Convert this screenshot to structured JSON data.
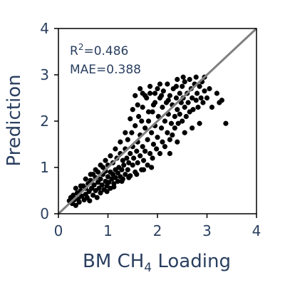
{
  "chart_data": {
    "type": "scatter",
    "title": "",
    "xlabel": {
      "main": "BM CH",
      "sub": "4",
      "tail": " Loading"
    },
    "ylabel": "Prediction",
    "xlim": [
      0,
      4
    ],
    "ylim": [
      0,
      4
    ],
    "xticks": [
      "0",
      "1",
      "2",
      "3",
      "4"
    ],
    "yticks": [
      "0",
      "1",
      "2",
      "3",
      "4"
    ],
    "grid": false,
    "reference_line": {
      "type": "y=x",
      "color": "#808080"
    },
    "annotations": {
      "r2": {
        "prefix": "R",
        "sup": "2",
        "value": "=0.486"
      },
      "mae": "MAE=0.388"
    },
    "point_color": "#000000",
    "points": [
      [
        0.22,
        0.28
      ],
      [
        0.25,
        0.35
      ],
      [
        0.28,
        0.22
      ],
      [
        0.3,
        0.4
      ],
      [
        0.32,
        0.3
      ],
      [
        0.35,
        0.18
      ],
      [
        0.38,
        0.45
      ],
      [
        0.4,
        0.32
      ],
      [
        0.42,
        0.25
      ],
      [
        0.45,
        0.5
      ],
      [
        0.47,
        0.38
      ],
      [
        0.5,
        0.6
      ],
      [
        0.52,
        0.3
      ],
      [
        0.55,
        0.42
      ],
      [
        0.55,
        0.55
      ],
      [
        0.58,
        0.35
      ],
      [
        0.6,
        0.65
      ],
      [
        0.62,
        0.48
      ],
      [
        0.63,
        0.28
      ],
      [
        0.65,
        0.72
      ],
      [
        0.67,
        0.55
      ],
      [
        0.7,
        0.4
      ],
      [
        0.7,
        0.85
      ],
      [
        0.72,
        0.62
      ],
      [
        0.75,
        0.5
      ],
      [
        0.75,
        0.78
      ],
      [
        0.78,
        0.35
      ],
      [
        0.8,
        0.68
      ],
      [
        0.8,
        0.9
      ],
      [
        0.82,
        0.55
      ],
      [
        0.85,
        0.75
      ],
      [
        0.85,
        0.45
      ],
      [
        0.88,
        0.62
      ],
      [
        0.9,
        0.85
      ],
      [
        0.9,
        1.0
      ],
      [
        0.92,
        0.52
      ],
      [
        0.95,
        0.7
      ],
      [
        0.95,
        0.92
      ],
      [
        0.98,
        0.6
      ],
      [
        1.0,
        0.8
      ],
      [
        1.0,
        1.05
      ],
      [
        1.02,
        0.68
      ],
      [
        1.05,
        0.9
      ],
      [
        1.05,
        0.55
      ],
      [
        1.08,
        0.75
      ],
      [
        1.1,
        1.1
      ],
      [
        1.1,
        0.85
      ],
      [
        1.12,
        0.65
      ],
      [
        1.15,
        0.95
      ],
      [
        1.15,
        0.78
      ],
      [
        1.18,
        1.2
      ],
      [
        1.2,
        0.88
      ],
      [
        1.2,
        0.7
      ],
      [
        1.22,
        1.0
      ],
      [
        1.25,
        0.8
      ],
      [
        1.25,
        1.3
      ],
      [
        1.28,
        0.95
      ],
      [
        1.3,
        1.15
      ],
      [
        1.3,
        0.75
      ],
      [
        1.32,
        1.05
      ],
      [
        1.35,
        0.85
      ],
      [
        1.35,
        1.4
      ],
      [
        1.38,
        1.2
      ],
      [
        1.4,
        0.95
      ],
      [
        1.4,
        1.6
      ],
      [
        1.42,
        1.1
      ],
      [
        1.45,
        1.3
      ],
      [
        1.45,
        0.82
      ],
      [
        1.48,
        1.75
      ],
      [
        1.5,
        1.05
      ],
      [
        1.5,
        1.45
      ],
      [
        1.52,
        1.2
      ],
      [
        1.55,
        1.9
      ],
      [
        1.55,
        0.9
      ],
      [
        1.58,
        1.35
      ],
      [
        1.6,
        1.55
      ],
      [
        1.6,
        1.1
      ],
      [
        1.62,
        2.1
      ],
      [
        1.65,
        1.25
      ],
      [
        1.65,
        1.7
      ],
      [
        1.68,
        0.95
      ],
      [
        1.7,
        1.45
      ],
      [
        1.7,
        2.3
      ],
      [
        1.72,
        1.15
      ],
      [
        1.75,
        1.85
      ],
      [
        1.75,
        1.35
      ],
      [
        1.78,
        2.5
      ],
      [
        1.8,
        1.6
      ],
      [
        1.8,
        1.05
      ],
      [
        1.82,
        2.0
      ],
      [
        1.85,
        1.3
      ],
      [
        1.85,
        2.6
      ],
      [
        1.88,
        1.75
      ],
      [
        1.9,
        2.2
      ],
      [
        1.9,
        1.2
      ],
      [
        1.92,
        1.5
      ],
      [
        1.95,
        2.4
      ],
      [
        1.95,
        1.9
      ],
      [
        1.98,
        1.4
      ],
      [
        2.0,
        2.7
      ],
      [
        2.0,
        1.65
      ],
      [
        2.02,
        2.1
      ],
      [
        2.05,
        1.3
      ],
      [
        2.05,
        2.5
      ],
      [
        2.08,
        1.85
      ],
      [
        2.1,
        2.3
      ],
      [
        2.1,
        1.55
      ],
      [
        2.12,
        2.65
      ],
      [
        2.15,
        2.0
      ],
      [
        2.15,
        1.45
      ],
      [
        2.18,
        2.4
      ],
      [
        2.2,
        1.75
      ],
      [
        2.2,
        2.8
      ],
      [
        2.22,
        2.15
      ],
      [
        2.25,
        1.6
      ],
      [
        2.25,
        2.55
      ],
      [
        2.28,
        1.95
      ],
      [
        2.3,
        2.35
      ],
      [
        2.3,
        1.7
      ],
      [
        2.32,
        2.7
      ],
      [
        2.35,
        2.1
      ],
      [
        2.35,
        1.85
      ],
      [
        2.38,
        2.5
      ],
      [
        2.4,
        2.25
      ],
      [
        2.4,
        2.9
      ],
      [
        2.42,
        1.95
      ],
      [
        2.45,
        2.6
      ],
      [
        2.45,
        2.15
      ],
      [
        2.48,
        2.4
      ],
      [
        2.5,
        2.75
      ],
      [
        2.5,
        2.0
      ],
      [
        2.52,
        2.5
      ],
      [
        2.55,
        2.3
      ],
      [
        2.55,
        2.85
      ],
      [
        2.58,
        2.1
      ],
      [
        2.6,
        2.6
      ],
      [
        2.62,
        2.4
      ],
      [
        2.65,
        2.2
      ],
      [
        2.68,
        2.7
      ],
      [
        2.7,
        2.5
      ],
      [
        2.72,
        2.25
      ],
      [
        2.75,
        2.8
      ],
      [
        2.78,
        2.45
      ],
      [
        2.8,
        2.6
      ],
      [
        2.82,
        2.3
      ],
      [
        2.85,
        2.75
      ],
      [
        2.88,
        2.5
      ],
      [
        2.9,
        2.85
      ],
      [
        2.92,
        2.4
      ],
      [
        2.95,
        2.65
      ],
      [
        3.0,
        2.5
      ],
      [
        3.05,
        2.7
      ],
      [
        3.1,
        2.3
      ],
      [
        3.2,
        2.6
      ],
      [
        3.25,
        2.4
      ],
      [
        3.3,
        2.45
      ],
      [
        3.38,
        1.95
      ],
      [
        1.55,
        2.55
      ],
      [
        1.65,
        2.7
      ],
      [
        1.75,
        2.55
      ],
      [
        1.85,
        2.75
      ],
      [
        1.95,
        2.6
      ],
      [
        2.05,
        2.8
      ],
      [
        1.6,
        2.35
      ],
      [
        1.7,
        2.6
      ],
      [
        1.5,
        2.25
      ],
      [
        1.45,
        2.05
      ],
      [
        1.35,
        1.75
      ],
      [
        1.25,
        1.55
      ],
      [
        1.15,
        1.4
      ],
      [
        1.05,
        1.25
      ],
      [
        0.95,
        1.15
      ],
      [
        0.85,
        1.05
      ],
      [
        0.75,
        0.95
      ],
      [
        0.65,
        0.85
      ],
      [
        0.55,
        0.75
      ],
      [
        0.45,
        0.6
      ],
      [
        0.35,
        0.55
      ],
      [
        1.88,
        1.0
      ],
      [
        1.72,
        0.95
      ],
      [
        1.58,
        0.85
      ],
      [
        1.42,
        0.78
      ],
      [
        1.28,
        0.7
      ],
      [
        1.12,
        0.58
      ],
      [
        0.98,
        0.48
      ],
      [
        2.25,
        1.3
      ],
      [
        2.4,
        1.55
      ],
      [
        2.55,
        1.75
      ],
      [
        2.7,
        1.85
      ],
      [
        2.85,
        1.95
      ],
      [
        1.92,
        2.35
      ],
      [
        2.08,
        2.55
      ],
      [
        2.22,
        2.45
      ],
      [
        2.38,
        2.75
      ],
      [
        2.52,
        2.95
      ],
      [
        2.65,
        2.9
      ],
      [
        2.78,
        2.95
      ],
      [
        2.95,
        2.95
      ],
      [
        1.82,
        2.2
      ],
      [
        1.68,
        2.0
      ]
    ]
  }
}
